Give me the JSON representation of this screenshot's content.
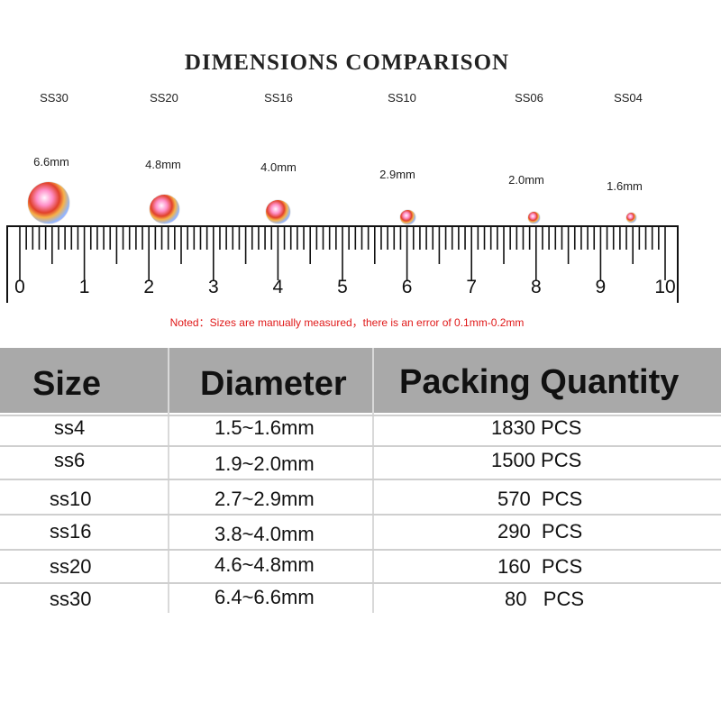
{
  "title": "DIMENSIONS COMPARISON",
  "gems": [
    {
      "size": "SS30",
      "mm": "6.6mm"
    },
    {
      "size": "SS20",
      "mm": "4.8mm"
    },
    {
      "size": "SS16",
      "mm": "4.0mm"
    },
    {
      "size": "SS10",
      "mm": "2.9mm"
    },
    {
      "size": "SS06",
      "mm": "2.0mm"
    },
    {
      "size": "SS04",
      "mm": "1.6mm"
    }
  ],
  "ruler_numbers": [
    "0",
    "1",
    "2",
    "3",
    "4",
    "5",
    "6",
    "7",
    "8",
    "9",
    "10"
  ],
  "note": "Noted：Sizes are manually measured，there is an error of 0.1mm-0.2mm",
  "table": {
    "headers": {
      "size": "Size",
      "diameter": "Diameter",
      "quantity": "Packing Quantity"
    },
    "rows": [
      {
        "size": "ss4",
        "diameter": "1.5~1.6mm",
        "quantity": "1830 PCS"
      },
      {
        "size": "ss6",
        "diameter": "1.9~2.0mm",
        "quantity": "1500 PCS"
      },
      {
        "size": "ss10",
        "diameter": "2.7~2.9mm",
        "quantity": "570  PCS"
      },
      {
        "size": "ss16",
        "diameter": "3.8~4.0mm",
        "quantity": "290  PCS"
      },
      {
        "size": "ss20",
        "diameter": "4.6~4.8mm",
        "quantity": "160  PCS"
      },
      {
        "size": "ss30",
        "diameter": "6.4~6.6mm",
        "quantity": "80   PCS"
      }
    ]
  },
  "colors": {
    "header_bg": "#a9a9a9",
    "note": "#e01818"
  }
}
